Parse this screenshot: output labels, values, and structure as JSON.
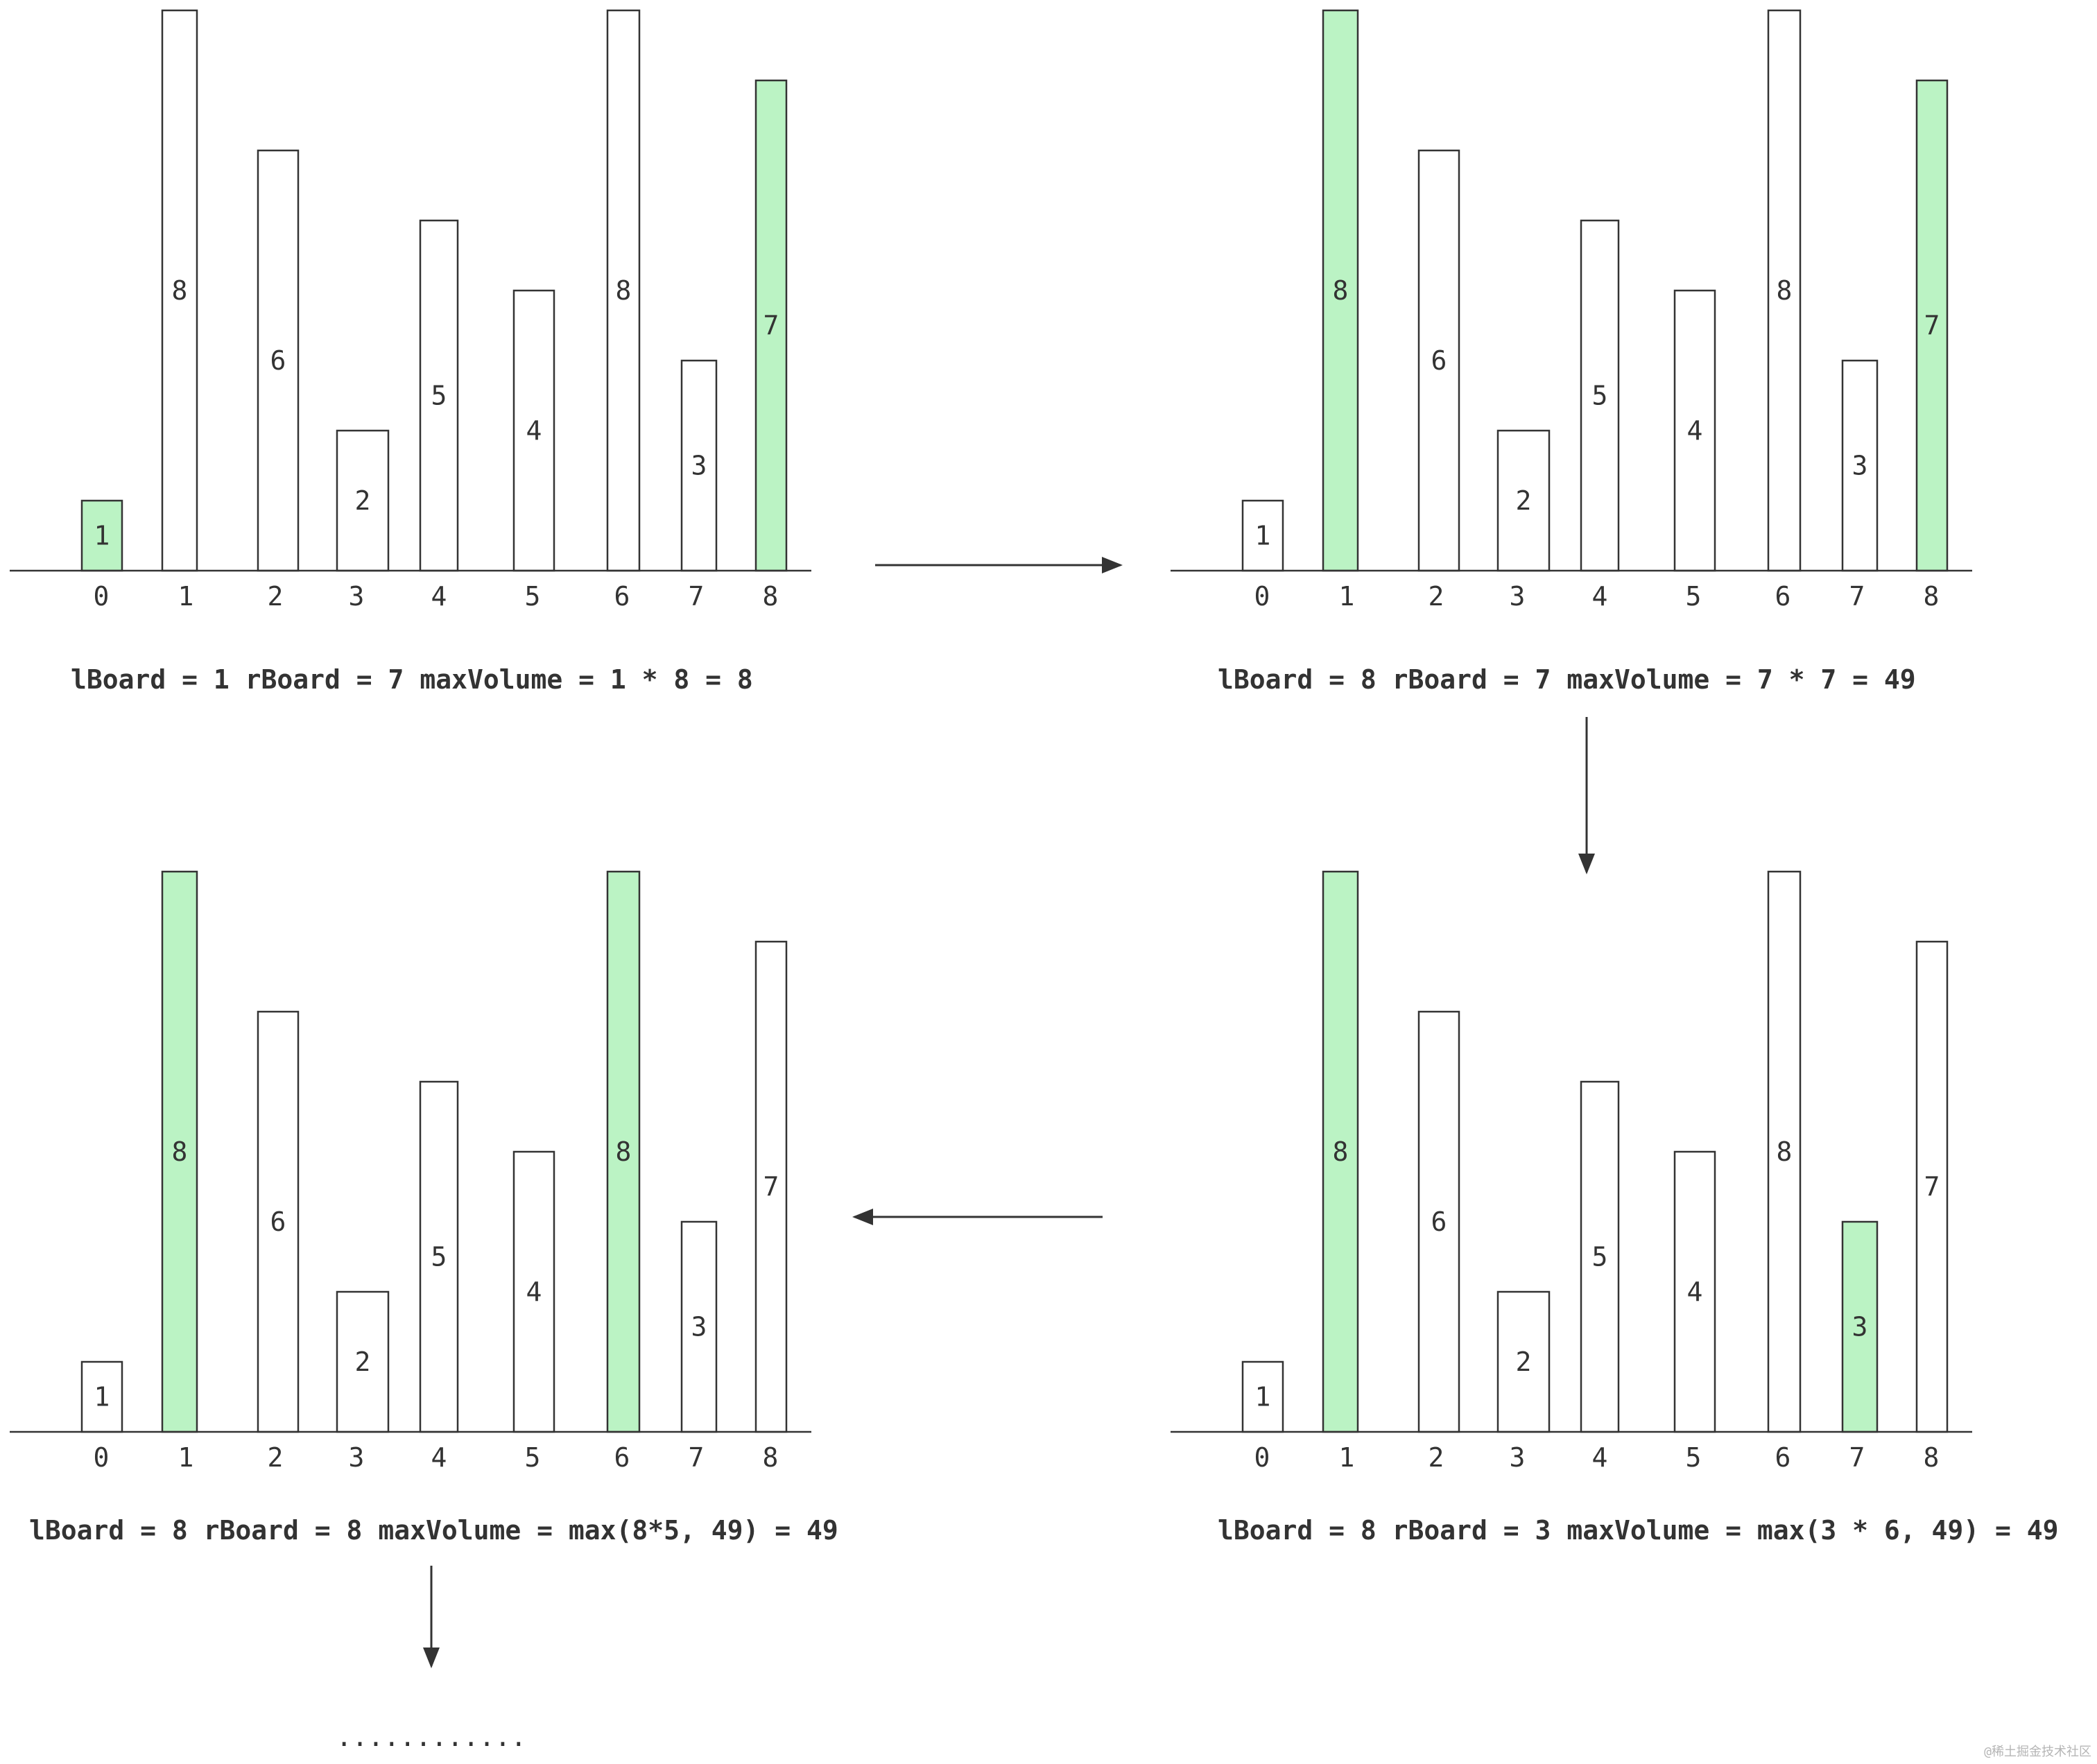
{
  "colors": {
    "highlight": "#bbf3c4",
    "stroke": "#333333",
    "background": "#ffffff"
  },
  "panels": [
    {
      "heights": [
        1,
        8,
        6,
        2,
        5,
        4,
        8,
        3,
        7
      ],
      "indices": [
        "0",
        "1",
        "2",
        "3",
        "4",
        "5",
        "6",
        "7",
        "8"
      ],
      "highlighted": [
        0,
        8
      ],
      "caption": "lBoard = 1 rBoard = 7 maxVolume = 1 * 8 = 8"
    },
    {
      "heights": [
        1,
        8,
        6,
        2,
        5,
        4,
        8,
        3,
        7
      ],
      "indices": [
        "0",
        "1",
        "2",
        "3",
        "4",
        "5",
        "6",
        "7",
        "8"
      ],
      "highlighted": [
        1,
        8
      ],
      "caption": "lBoard = 8 rBoard = 7 maxVolume = 7 * 7 = 49"
    },
    {
      "heights": [
        1,
        8,
        6,
        2,
        5,
        4,
        8,
        3,
        7
      ],
      "indices": [
        "0",
        "1",
        "2",
        "3",
        "4",
        "5",
        "6",
        "7",
        "8"
      ],
      "highlighted": [
        1,
        6
      ],
      "caption": "lBoard = 8 rBoard = 8 maxVolume = max(8*5, 49) = 49"
    },
    {
      "heights": [
        1,
        8,
        6,
        2,
        5,
        4,
        8,
        3,
        7
      ],
      "indices": [
        "0",
        "1",
        "2",
        "3",
        "4",
        "5",
        "6",
        "7",
        "8"
      ],
      "highlighted": [
        1,
        7
      ],
      "caption": "lBoard = 8 rBoard = 3 maxVolume = max(3 * 6, 49) = 49"
    }
  ],
  "ellipsis": "............",
  "watermark": "@稀土掘金技术社区"
}
